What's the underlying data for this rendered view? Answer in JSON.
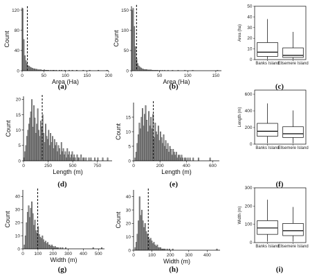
{
  "chart_data": [
    {
      "id": "a",
      "type": "histogram",
      "panel_label": "(a)",
      "xlabel": "Area (Ha)",
      "ylabel": "Count",
      "xlim": [
        0,
        200
      ],
      "ylim": [
        0,
        125
      ],
      "xticks": [
        "0",
        "50",
        "100",
        "150",
        "200"
      ],
      "yticks": [
        "0",
        "40",
        "80",
        "120"
      ],
      "bin_width": 2.5,
      "counts": [
        123,
        62,
        30,
        20,
        14,
        10,
        9,
        7,
        6,
        5,
        4,
        4,
        3,
        3,
        2,
        2,
        2,
        2,
        1,
        1,
        2,
        1,
        1,
        1,
        1,
        0,
        1,
        0,
        1,
        1,
        0,
        1,
        0,
        0,
        1,
        0,
        1,
        0,
        0,
        1,
        0,
        0,
        0,
        1,
        0,
        0,
        1,
        0,
        0,
        0,
        1,
        0,
        0,
        0,
        0,
        0,
        1,
        0,
        0,
        0,
        0,
        0,
        1,
        0,
        0,
        0,
        0,
        0,
        0,
        0,
        1,
        0,
        0,
        0,
        0,
        0,
        0,
        0,
        1
      ],
      "dashed_line": 12
    },
    {
      "id": "b",
      "type": "histogram",
      "panel_label": "(b)",
      "xlabel": "Area (Ha)",
      "ylabel": "Count",
      "xlim": [
        0,
        160
      ],
      "ylim": [
        0,
        160
      ],
      "xticks": [
        "0",
        "50",
        "100",
        "150"
      ],
      "yticks": [
        "0",
        "50",
        "100",
        "150"
      ],
      "bin_width": 2,
      "counts": [
        150,
        155,
        110,
        60,
        30,
        18,
        12,
        9,
        7,
        5,
        4,
        3,
        3,
        3,
        2,
        2,
        2,
        2,
        1,
        1,
        1,
        1,
        1,
        1,
        0,
        1,
        0,
        1,
        0,
        1,
        0,
        0,
        1,
        0,
        0,
        0,
        1,
        0,
        0,
        0,
        0,
        1,
        0,
        0,
        0,
        0,
        0,
        1,
        0,
        0,
        0,
        0,
        0,
        0,
        1,
        0,
        0,
        0,
        0,
        0,
        0,
        0,
        0,
        0,
        0,
        0,
        0,
        0,
        0,
        0,
        0,
        0,
        0,
        0,
        0,
        0,
        1
      ],
      "dashed_line": 9
    },
    {
      "id": "c",
      "type": "boxplot",
      "panel_label": "(c)",
      "ylabel": "Area (ha)",
      "ylim": [
        0,
        50
      ],
      "yticks": [
        "0",
        "10",
        "20",
        "30",
        "40",
        "50"
      ],
      "categories": [
        "Banks Island",
        "Ellsemere Island"
      ],
      "boxes": [
        {
          "whisker_low": 0.5,
          "q1": 3,
          "median": 7,
          "q3": 16,
          "whisker_high": 38
        },
        {
          "whisker_low": 0.5,
          "q1": 2,
          "median": 4,
          "q3": 11,
          "whisker_high": 26
        }
      ]
    },
    {
      "id": "d",
      "type": "histogram",
      "panel_label": "(d)",
      "xlabel": "Length (m)",
      "ylabel": "Count",
      "xlim": [
        0,
        900
      ],
      "ylim": [
        0,
        21
      ],
      "xticks": [
        "0",
        "250",
        "500",
        "750"
      ],
      "yticks": [
        "0",
        "5",
        "10",
        "15",
        "20"
      ],
      "bin_width": 10,
      "counts": [
        1,
        3,
        5,
        8,
        10,
        12,
        14,
        16,
        20,
        11,
        18,
        14,
        9,
        12,
        17,
        10,
        8,
        13,
        11,
        15,
        9,
        6,
        12,
        8,
        7,
        10,
        5,
        9,
        6,
        8,
        4,
        7,
        5,
        6,
        3,
        5,
        4,
        2,
        6,
        3,
        4,
        2,
        3,
        1,
        4,
        2,
        3,
        1,
        2,
        3,
        1,
        2,
        1,
        0,
        2,
        1,
        1,
        0,
        2,
        0,
        1,
        1,
        0,
        1,
        0,
        0,
        1,
        0,
        1,
        0,
        0,
        0,
        1,
        0,
        0,
        1,
        0,
        0,
        0,
        0,
        1,
        0,
        0,
        0,
        0,
        1
      ],
      "dashed_line": 190
    },
    {
      "id": "e",
      "type": "histogram",
      "panel_label": "(e)",
      "xlabel": "Length (m)",
      "ylabel": "Count",
      "xlim": [
        0,
        650
      ],
      "ylim": [
        0,
        20
      ],
      "xticks": [
        "0",
        "200",
        "400",
        "600"
      ],
      "yticks": [
        "0",
        "5",
        "10",
        "15"
      ],
      "bin_width": 8,
      "counts": [
        0,
        1,
        3,
        6,
        9,
        13,
        11,
        15,
        18,
        12,
        16,
        19,
        14,
        10,
        17,
        12,
        15,
        11,
        16,
        8,
        13,
        10,
        9,
        12,
        7,
        10,
        8,
        6,
        9,
        5,
        7,
        4,
        6,
        3,
        5,
        4,
        2,
        4,
        3,
        2,
        3,
        1,
        2,
        2,
        1,
        2,
        1,
        0,
        1,
        1,
        0,
        1,
        0,
        1,
        0,
        0,
        1,
        0,
        0,
        0,
        0,
        1,
        0,
        0,
        0,
        0,
        0,
        0,
        0,
        0,
        0,
        0,
        1
      ],
      "dashed_line": 150
    },
    {
      "id": "f",
      "type": "boxplot",
      "panel_label": "(f)",
      "ylabel": "Length (m)",
      "ylim": [
        0,
        650
      ],
      "yticks": [
        "0",
        "200",
        "400",
        "600"
      ],
      "categories": [
        "Banks Island",
        "Ellsemere Island"
      ],
      "boxes": [
        {
          "whisker_low": 10,
          "q1": 95,
          "median": 155,
          "q3": 250,
          "whisker_high": 490
        },
        {
          "whisker_low": 10,
          "q1": 80,
          "median": 125,
          "q3": 210,
          "whisker_high": 405
        }
      ]
    },
    {
      "id": "g",
      "type": "histogram",
      "panel_label": "(g)",
      "xlabel": "Width (m)",
      "ylabel": "Count",
      "xlim": [
        0,
        540
      ],
      "ylim": [
        0,
        45
      ],
      "xticks": [
        "0",
        "100",
        "200",
        "300",
        "400",
        "500"
      ],
      "yticks": [
        "0",
        "10",
        "20",
        "30",
        "40"
      ],
      "bin_width": 7,
      "counts": [
        0,
        3,
        10,
        20,
        28,
        33,
        24,
        31,
        36,
        27,
        18,
        22,
        14,
        12,
        17,
        11,
        9,
        8,
        10,
        7,
        5,
        6,
        4,
        5,
        3,
        3,
        2,
        3,
        2,
        1,
        2,
        1,
        1,
        1,
        0,
        1,
        0,
        1,
        0,
        0,
        1,
        0,
        0,
        0,
        0,
        0,
        0,
        0,
        0,
        0,
        0,
        0,
        0,
        0,
        0,
        0,
        0,
        0,
        0,
        0,
        0,
        0,
        0,
        0,
        0,
        0,
        1,
        0,
        0,
        0,
        0,
        0,
        0,
        0,
        1
      ],
      "dashed_line": 98
    },
    {
      "id": "h",
      "type": "histogram",
      "panel_label": "(h)",
      "xlabel": "Width (m)",
      "ylabel": "Count",
      "xlim": [
        0,
        470
      ],
      "ylim": [
        0,
        45
      ],
      "xticks": [
        "0",
        "100",
        "200",
        "300",
        "400"
      ],
      "yticks": [
        "0",
        "10",
        "20",
        "30",
        "40"
      ],
      "bin_width": 6,
      "counts": [
        0,
        2,
        6,
        12,
        22,
        40,
        26,
        30,
        22,
        17,
        20,
        14,
        12,
        10,
        8,
        9,
        7,
        5,
        6,
        4,
        3,
        4,
        2,
        2,
        2,
        1,
        1,
        1,
        1,
        0,
        1,
        0,
        1,
        0,
        0,
        1,
        0,
        0,
        0,
        0,
        0,
        0,
        0,
        0,
        0,
        0,
        0,
        0,
        0,
        0,
        0,
        0,
        0,
        0,
        0,
        0,
        0,
        0,
        0,
        0,
        0,
        0,
        0,
        0,
        0,
        0,
        0,
        0,
        0,
        0,
        0,
        0,
        0,
        0,
        0,
        1
      ],
      "dashed_line": 80
    },
    {
      "id": "i",
      "type": "boxplot",
      "panel_label": "(i)",
      "ylabel": "Width (m)",
      "ylim": [
        0,
        300
      ],
      "yticks": [
        "0",
        "100",
        "200",
        "300"
      ],
      "categories": [
        "Banks Island",
        "Ellsemere Island"
      ],
      "boxes": [
        {
          "whisker_low": 5,
          "q1": 45,
          "median": 80,
          "q3": 120,
          "whisker_high": 235
        },
        {
          "whisker_low": 5,
          "q1": 38,
          "median": 65,
          "q3": 105,
          "whisker_high": 195
        }
      ]
    }
  ]
}
